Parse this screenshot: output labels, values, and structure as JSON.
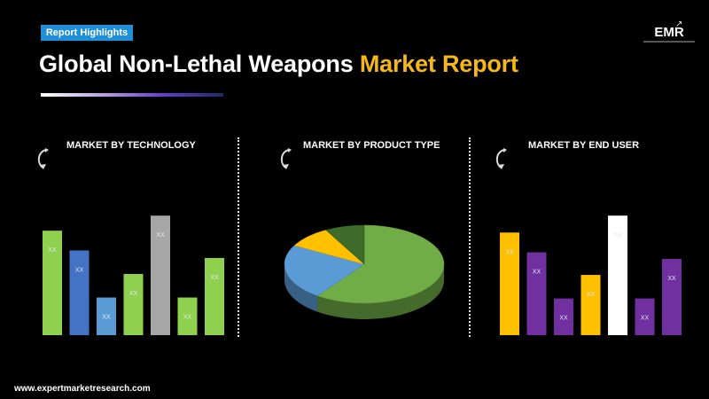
{
  "badge": "Report Highlights",
  "title": {
    "main": "Global Non-Lethal Weapons",
    "accent": "Market Report"
  },
  "logo": {
    "text": "EMR"
  },
  "footer": "www.expertmarketresearch.com",
  "colors": {
    "accent": "#f5b817",
    "badge": "#1f8fd8"
  },
  "chart_data": [
    {
      "type": "bar",
      "title": "MARKET BY TECHNOLOGY",
      "ylim": [
        0,
        130
      ],
      "bars": [
        {
          "label": "XX",
          "value": 111,
          "color": "#8fd14f"
        },
        {
          "label": "XX",
          "value": 90,
          "color": "#4472c4"
        },
        {
          "label": "XX",
          "value": 40,
          "color": "#5b9bd5"
        },
        {
          "label": "XX",
          "value": 65,
          "color": "#8fd14f"
        },
        {
          "label": "XX",
          "value": 127,
          "color": "#a6a6a6"
        },
        {
          "label": "XX",
          "value": 40,
          "color": "#8fd14f"
        },
        {
          "label": "XX",
          "value": 82,
          "color": "#8fd14f"
        }
      ]
    },
    {
      "type": "pie",
      "title": "MARKET BY PRODUCT TYPE",
      "slices": [
        {
          "value": 60,
          "color": "#70ad47"
        },
        {
          "value": 23,
          "color": "#5b9bd5"
        },
        {
          "value": 9,
          "color": "#ffc000"
        },
        {
          "value": 8,
          "color": "#3f6b2a"
        }
      ]
    },
    {
      "type": "bar",
      "title": "MARKET BY END USER",
      "ylim": [
        0,
        130
      ],
      "bars": [
        {
          "label": "XX",
          "value": 109,
          "color": "#ffc000"
        },
        {
          "label": "XX",
          "value": 88,
          "color": "#7030a0"
        },
        {
          "label": "XX",
          "value": 39,
          "color": "#7030a0"
        },
        {
          "label": "XX",
          "value": 64,
          "color": "#ffc000"
        },
        {
          "label": "XX",
          "value": 127,
          "color": "#ffffff"
        },
        {
          "label": "XX",
          "value": 39,
          "color": "#7030a0"
        },
        {
          "label": "XX",
          "value": 81,
          "color": "#7030a0"
        }
      ]
    }
  ]
}
